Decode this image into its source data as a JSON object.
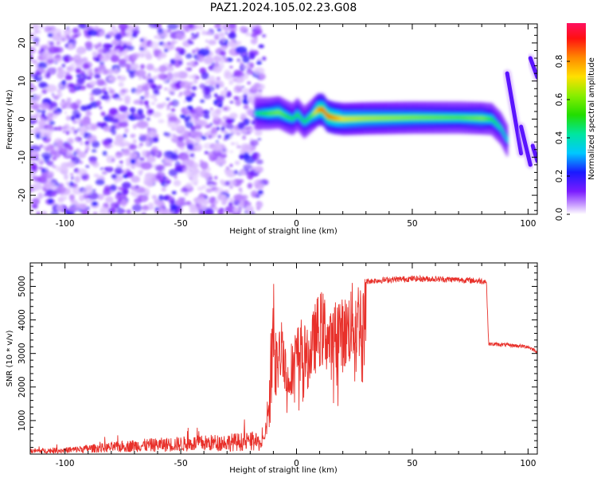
{
  "figure_title": "PAZ1.2024.105.02.23.G08",
  "chart_data": [
    {
      "type": "heatmap",
      "title": "PAZ1.2024.105.02.23.G08",
      "xlabel": "Height of straight line (km)",
      "ylabel": "Frequency (Hz)",
      "xlim": [
        -115,
        104
      ],
      "ylim": [
        -25,
        25
      ],
      "x_ticks": [
        -100,
        -50,
        0,
        50,
        100
      ],
      "y_ticks": [
        -20,
        -10,
        0,
        10,
        20
      ],
      "colorbar": {
        "label": "Normalized spectral amplitude",
        "range": [
          0.0,
          1.0
        ],
        "ticks": [
          0.0,
          0.2,
          0.4,
          0.6,
          0.8
        ]
      },
      "noise_region_x": [
        -115,
        -18
      ],
      "ridge": {
        "x": [
          -18,
          -12,
          -8,
          -4,
          -2,
          0,
          3,
          6,
          9,
          11,
          13,
          16,
          20,
          30,
          50,
          70,
          80,
          84,
          88,
          91
        ],
        "y": [
          1.5,
          1.5,
          1.8,
          0.5,
          0.0,
          1.3,
          -0.8,
          0.8,
          2.5,
          2.5,
          0.8,
          0.3,
          0.0,
          0.2,
          0.4,
          0.4,
          0.2,
          0.0,
          -2.5,
          -6
        ],
        "peak_amplitude": [
          0.4,
          0.55,
          0.6,
          0.5,
          0.45,
          0.5,
          0.45,
          0.55,
          0.8,
          0.85,
          0.85,
          0.8,
          0.7,
          0.65,
          0.6,
          0.55,
          0.6,
          0.5,
          0.4,
          0.35
        ]
      },
      "streaks": [
        {
          "x": [
            91,
            97
          ],
          "y": [
            12,
            -9
          ]
        },
        {
          "x": [
            97,
            101
          ],
          "y": [
            -2,
            -12
          ]
        },
        {
          "x": [
            101,
            104
          ],
          "y": [
            16,
            11
          ]
        },
        {
          "x": [
            102,
            104
          ],
          "y": [
            -7,
            -11
          ]
        }
      ]
    },
    {
      "type": "line",
      "xlabel": "Height of straight line (km)",
      "ylabel": "SNR (10 * v/v)",
      "xlim": [
        -115,
        104
      ],
      "ylim": [
        0,
        5700
      ],
      "x_ticks": [
        -100,
        -50,
        0,
        50,
        100
      ],
      "y_ticks": [
        1000,
        2000,
        3000,
        4000,
        5000
      ],
      "color": "#e8302a",
      "series_envelope": {
        "x": [
          -115,
          -100,
          -90,
          -80,
          -70,
          -60,
          -50,
          -40,
          -30,
          -20,
          -14,
          -12,
          -10,
          -8,
          -6,
          -4,
          -2,
          0,
          2,
          5,
          8,
          10,
          12,
          15,
          18,
          20,
          25,
          30,
          40,
          50,
          60,
          70,
          80,
          82,
          83,
          90,
          100,
          104
        ],
        "y": [
          150,
          180,
          260,
          320,
          400,
          440,
          480,
          520,
          560,
          600,
          500,
          1800,
          4700,
          3300,
          4200,
          2600,
          3300,
          3600,
          3900,
          3500,
          4300,
          4700,
          4600,
          4000,
          4700,
          4400,
          5000,
          5150,
          5200,
          5230,
          5220,
          5200,
          5160,
          5150,
          3280,
          3260,
          3200,
          3050
        ]
      }
    }
  ]
}
